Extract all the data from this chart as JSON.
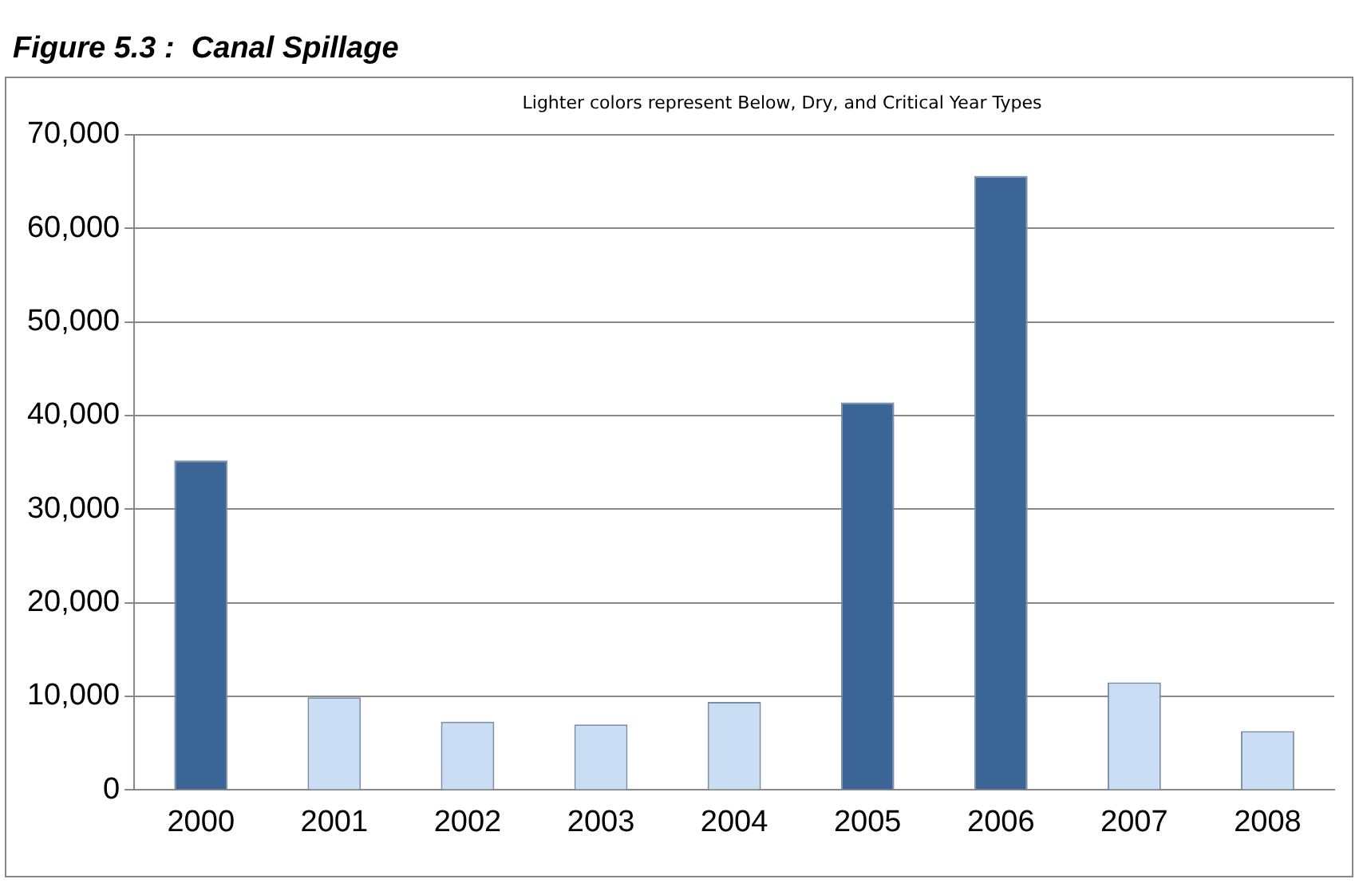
{
  "chart_data": {
    "type": "bar",
    "title": "Figure 5.3 :  Canal Spillage",
    "subtitle": "Lighter colors represent Below, Dry, and Critical Year Types",
    "categories": [
      "2000",
      "2001",
      "2002",
      "2003",
      "2004",
      "2005",
      "2006",
      "2007",
      "2008"
    ],
    "values": [
      35200,
      9900,
      7300,
      7000,
      9400,
      41400,
      65600,
      11500,
      6300
    ],
    "colors": [
      "#3b6497",
      "#c9def5",
      "#c9def5",
      "#c9def5",
      "#c9def5",
      "#3b6497",
      "#3b6497",
      "#c9def5",
      "#c9def5"
    ],
    "ylim": [
      0,
      70000
    ],
    "yticks": [
      {
        "value": 0,
        "label": "0"
      },
      {
        "value": 10000,
        "label": "10,000"
      },
      {
        "value": 20000,
        "label": "20,000"
      },
      {
        "value": 30000,
        "label": "30,000"
      },
      {
        "value": 40000,
        "label": "40,000"
      },
      {
        "value": 50000,
        "label": "50,000"
      },
      {
        "value": 60000,
        "label": "60,000"
      },
      {
        "value": 70000,
        "label": "70,000"
      }
    ],
    "grid": "y",
    "legend": false
  }
}
